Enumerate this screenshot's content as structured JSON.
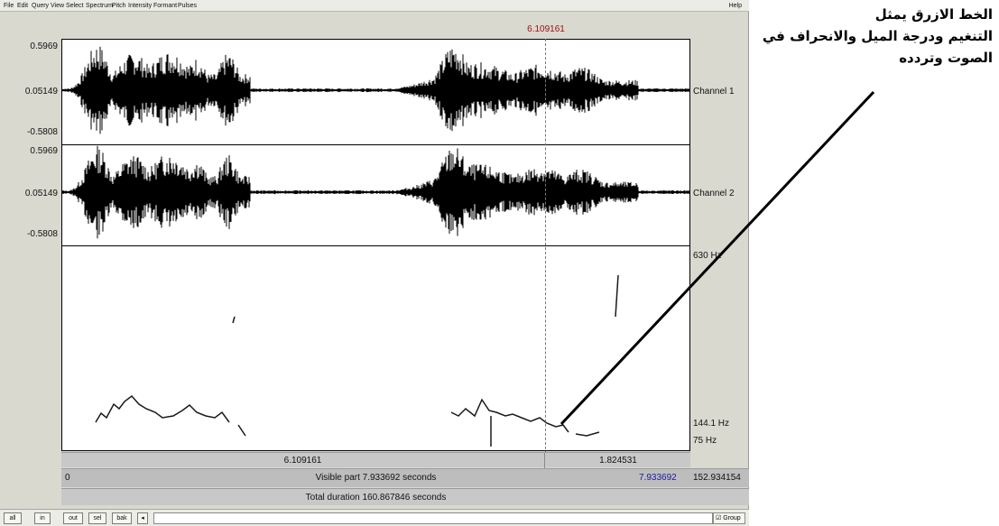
{
  "menu": {
    "items": [
      "File",
      "Edit",
      "Query",
      "View",
      "Select",
      "Spectrum",
      "Pitch",
      "Intensity",
      "Formant",
      "Pulses"
    ],
    "help": "Help"
  },
  "cursor": {
    "time": "6.109161"
  },
  "channels": [
    {
      "name": "Channel 1",
      "max": "0.5969",
      "zero": "0.05149",
      "min": "-0.5808"
    },
    {
      "name": "Channel 2",
      "max": "0.5969",
      "zero": "0.05149",
      "min": "-0.5808"
    }
  ],
  "pitch": {
    "top_label": "630 Hz",
    "mid_label": "144.1 Hz",
    "bottom_label": "75 Hz",
    "line_color": "#1a1a1a"
  },
  "time_bar": {
    "left": "6.109161",
    "right": "1.824531"
  },
  "visible_bar": {
    "start": "0",
    "label": "Visible part 7.933692 seconds",
    "end": "7.933692",
    "total_end": "152.934154"
  },
  "total_bar": {
    "label": "Total duration 160.867846 seconds"
  },
  "toolbar": {
    "buttons": [
      "all",
      "in",
      "out",
      "sel",
      "bak"
    ],
    "group": "Group"
  },
  "annotation": {
    "lines": [
      "الخط الازرق يمثل",
      "التنغيم ودرجة الميل والانحراف في",
      "الصوت وتردده"
    ]
  }
}
